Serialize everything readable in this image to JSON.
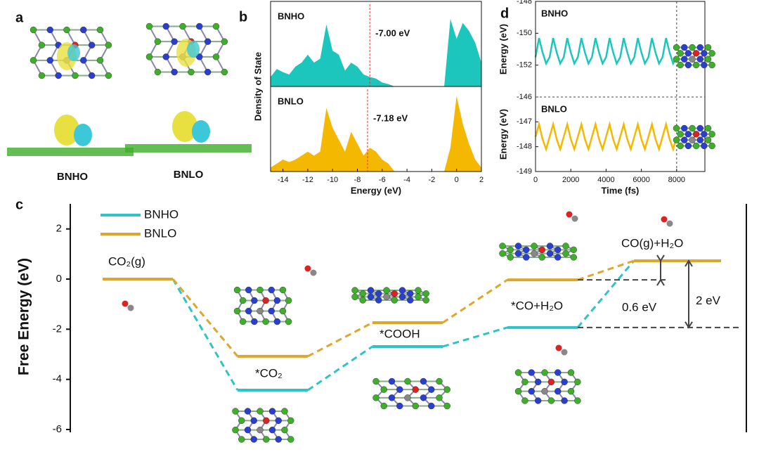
{
  "panel_a": {
    "panel": "a",
    "labels": [
      "BNHO",
      "BNLO"
    ]
  },
  "chart_data": [
    {
      "type": "area",
      "panel": "b",
      "xlabel": "Energy (eV)",
      "ylabel": "Density of State",
      "x": [
        -15,
        -14.5,
        -14,
        -13.5,
        -13,
        -12.5,
        -12,
        -11.5,
        -11,
        -10.5,
        -10,
        -9.5,
        -9,
        -8.5,
        -8,
        -7.5,
        -7,
        -6.5,
        -6,
        -5.5,
        -5,
        -4.5,
        -4,
        -3.5,
        -3,
        -2.5,
        -2,
        -1.5,
        -1,
        -0.5,
        0,
        0.5,
        1,
        1.5,
        2
      ],
      "xlim": [
        -15,
        2
      ],
      "xticks": [
        -14,
        -12,
        -10,
        -8,
        -6,
        -4,
        -2,
        0,
        2
      ],
      "ylim": [
        0,
        1
      ],
      "series": [
        {
          "name": "BNHO",
          "color": "#1cc6bd",
          "fermi": -7.0,
          "fermi_label": "-7.00 eV",
          "values": [
            0.12,
            0.22,
            0.18,
            0.15,
            0.25,
            0.3,
            0.4,
            0.3,
            0.35,
            0.78,
            0.45,
            0.4,
            0.2,
            0.3,
            0.25,
            0.15,
            0.12,
            0.1,
            0.05,
            0.03,
            0,
            0,
            0,
            0,
            0,
            0,
            0,
            0,
            0,
            0.85,
            0.6,
            0.8,
            0.7,
            0.55,
            0.3
          ]
        },
        {
          "name": "BNLO",
          "color": "#f5b800",
          "fermi": -7.18,
          "fermi_label": "-7.18 eV",
          "values": [
            0.05,
            0.1,
            0.15,
            0.12,
            0.15,
            0.2,
            0.25,
            0.2,
            0.25,
            0.8,
            0.55,
            0.4,
            0.25,
            0.5,
            0.35,
            0.2,
            0.3,
            0.25,
            0.15,
            0.1,
            0,
            0,
            0,
            0,
            0,
            0,
            0,
            0,
            0,
            0.3,
            0.95,
            0.6,
            0.35,
            0.15,
            0.05
          ]
        }
      ]
    },
    {
      "type": "line",
      "panel": "d",
      "xlabel": "Time (fs)",
      "ylabel": "Energy (eV)",
      "x": [
        0,
        200,
        400,
        600,
        800,
        1000,
        1200,
        1400,
        1600,
        1800,
        2000,
        2200,
        2400,
        2600,
        2800,
        3000,
        3200,
        3400,
        3600,
        3800,
        4000,
        4200,
        4400,
        4600,
        4800,
        5000,
        5200,
        5400,
        5600,
        5800,
        6000,
        6200,
        6400,
        6600,
        6800,
        7000,
        7200,
        7400,
        7600,
        7800,
        8000
      ],
      "xlim": [
        0,
        9600
      ],
      "xticks": [
        0,
        2000,
        4000,
        6000,
        8000
      ],
      "vline": 8000,
      "series": [
        {
          "name": "BNHO",
          "color": "#1cc6bd",
          "ylim": [
            -154,
            -148
          ],
          "yticks": [
            -152,
            -150,
            -148
          ],
          "values": [
            -151.5,
            -150.3,
            -151.2,
            -151.9,
            -151.5,
            -150.3,
            -151.2,
            -151.9,
            -151.5,
            -150.3,
            -151.2,
            -151.9,
            -151.5,
            -150.3,
            -151.2,
            -151.9,
            -151.5,
            -150.3,
            -151.2,
            -151.9,
            -151.5,
            -150.3,
            -151.2,
            -151.9,
            -151.5,
            -150.3,
            -151.2,
            -151.9,
            -151.5,
            -150.3,
            -151.2,
            -151.9,
            -151.5,
            -150.3,
            -151.2,
            -151.9,
            -151.5,
            -150.3,
            -151.2,
            -151.9,
            -151.5
          ]
        },
        {
          "name": "BNLO",
          "color": "#f5b800",
          "ylim": [
            -149,
            -146
          ],
          "yticks": [
            -149,
            -148,
            -147,
            -146
          ],
          "values": [
            -147.6,
            -147.1,
            -147.7,
            -148.1,
            -147.6,
            -147.1,
            -147.7,
            -148.1,
            -147.6,
            -147.1,
            -147.7,
            -148.1,
            -147.6,
            -147.1,
            -147.7,
            -148.1,
            -147.6,
            -147.1,
            -147.7,
            -148.1,
            -147.6,
            -147.1,
            -147.7,
            -148.1,
            -147.6,
            -147.1,
            -147.7,
            -148.1,
            -147.6,
            -147.1,
            -147.7,
            -148.1,
            -147.6,
            -147.1,
            -147.7,
            -148.1,
            -147.6,
            -147.1,
            -147.7,
            -148.1,
            -147.6
          ]
        }
      ]
    },
    {
      "type": "step",
      "panel": "c",
      "ylabel": "Free Energy (eV)",
      "categories": [
        "CO₂(g)",
        "*CO₂",
        "*COOH",
        "*CO+H₂O",
        "CO(g)+H₂O"
      ],
      "ylim": [
        -6,
        3
      ],
      "yticks": [
        -6,
        -4,
        -2,
        0,
        2
      ],
      "series": [
        {
          "name": "BNHO",
          "color": "#2ec4c6",
          "values": [
            0,
            -4.43,
            -2.69,
            -1.93,
            0.73
          ]
        },
        {
          "name": "BNLO",
          "color": "#dca72c",
          "values": [
            0,
            -3.08,
            -1.74,
            -0.03,
            0.73
          ]
        }
      ],
      "annotations": [
        {
          "text": "0.6 eV"
        },
        {
          "text": "2 eV"
        }
      ]
    }
  ]
}
